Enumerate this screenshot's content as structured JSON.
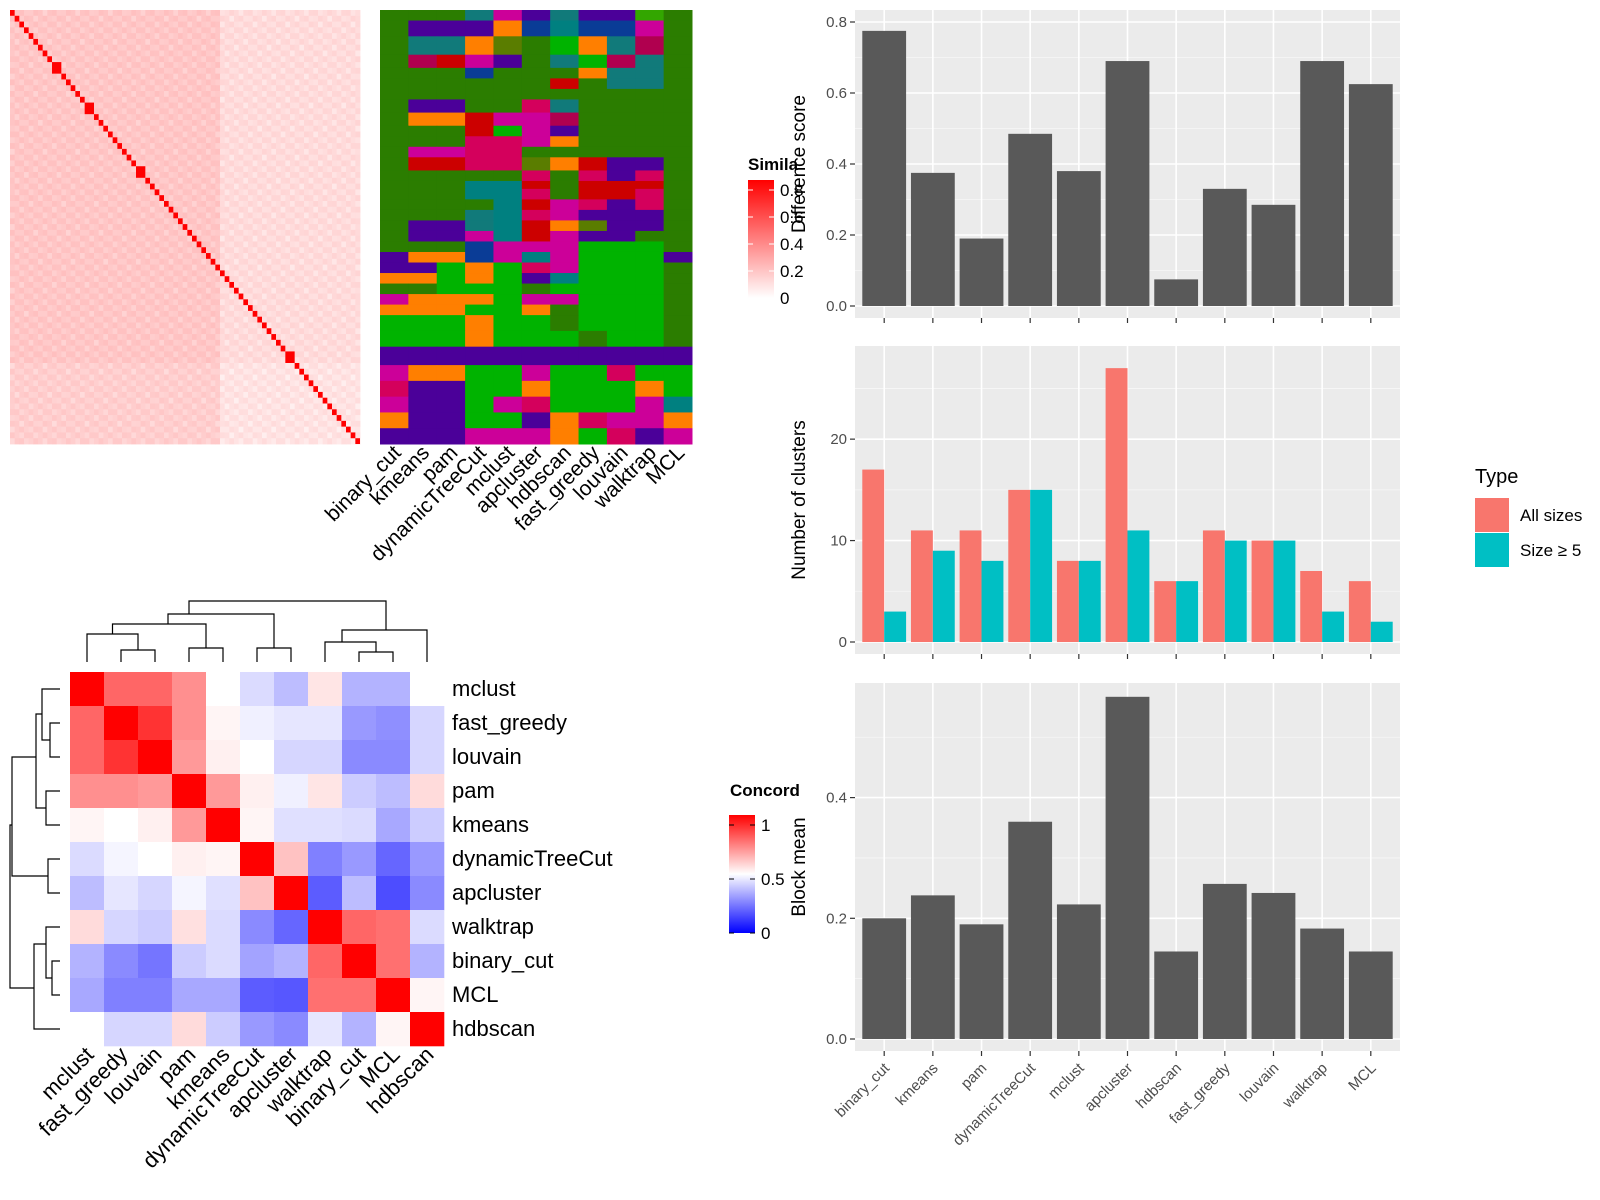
{
  "chart_data": [
    {
      "type": "heatmap",
      "title": "",
      "legend_title": "Simila",
      "legend_ticks": [
        "0",
        "0.2",
        "0.4",
        "0.6",
        "0.8"
      ],
      "color_low": "#ffffff",
      "color_high": "#ff0000",
      "n_cells": 75,
      "diag_blocks": [
        [
          0,
          1
        ],
        [
          1,
          2
        ],
        [
          2,
          3
        ],
        [
          3,
          4
        ],
        [
          4,
          5
        ],
        [
          5,
          6
        ],
        [
          6,
          7
        ],
        [
          7,
          8
        ],
        [
          8,
          9
        ],
        [
          9,
          11
        ],
        [
          11,
          12
        ],
        [
          12,
          13
        ],
        [
          13,
          14
        ],
        [
          14,
          15
        ],
        [
          15,
          16
        ],
        [
          16,
          18
        ],
        [
          18,
          19
        ],
        [
          19,
          20
        ],
        [
          20,
          21
        ],
        [
          21,
          22
        ],
        [
          22,
          23
        ],
        [
          23,
          24
        ],
        [
          24,
          25
        ],
        [
          25,
          26
        ],
        [
          26,
          27
        ],
        [
          27,
          29
        ],
        [
          29,
          30
        ],
        [
          30,
          31
        ],
        [
          31,
          32
        ],
        [
          32,
          33
        ],
        [
          33,
          34
        ],
        [
          34,
          35
        ],
        [
          35,
          36
        ],
        [
          36,
          37
        ],
        [
          37,
          38
        ],
        [
          38,
          39
        ],
        [
          39,
          40
        ],
        [
          40,
          41
        ],
        [
          41,
          42
        ],
        [
          42,
          43
        ],
        [
          43,
          44
        ],
        [
          44,
          45
        ],
        [
          45,
          46
        ],
        [
          46,
          47
        ],
        [
          47,
          48
        ],
        [
          48,
          49
        ],
        [
          49,
          50
        ],
        [
          50,
          51
        ],
        [
          51,
          52
        ],
        [
          52,
          53
        ],
        [
          53,
          54
        ],
        [
          54,
          55
        ],
        [
          55,
          56
        ],
        [
          56,
          57
        ],
        [
          57,
          58
        ],
        [
          58,
          59
        ],
        [
          59,
          61
        ],
        [
          61,
          62
        ],
        [
          62,
          63
        ],
        [
          63,
          64
        ],
        [
          64,
          65
        ],
        [
          65,
          66
        ],
        [
          66,
          67
        ],
        [
          67,
          68
        ],
        [
          68,
          69
        ],
        [
          69,
          70
        ],
        [
          70,
          71
        ],
        [
          71,
          72
        ],
        [
          72,
          73
        ],
        [
          73,
          74
        ],
        [
          74,
          75
        ]
      ]
    },
    {
      "type": "heatmap",
      "title": "",
      "columns": [
        "binary_cut",
        "kmeans",
        "pam",
        "dynamicTreeCut",
        "mclust",
        "apcluster",
        "hdbscan",
        "fast_greedy",
        "louvain",
        "walktrap",
        "MCL"
      ],
      "palette": [
        "#2b7d00",
        "#4b0099",
        "#cc0099",
        "#117a7a",
        "#ff7f00",
        "#9b30ff",
        "#00b300",
        "#cc0000",
        "#0a3c96",
        "#5a7d00",
        "#33a600",
        "#d4005c",
        "#008080",
        "#b0004f"
      ],
      "row_groups": [
        {
          "rows": [
            0,
            8
          ],
          "cells": [
            0,
            0,
            0,
            3,
            2,
            1,
            3,
            1,
            1,
            10,
            0
          ]
        },
        {
          "rows": [
            8,
            20
          ],
          "cells": [
            0,
            1,
            1,
            1,
            4,
            8,
            12,
            8,
            8,
            2,
            0
          ]
        },
        {
          "rows": [
            20,
            34
          ],
          "cells": [
            0,
            3,
            3,
            4,
            9,
            0,
            6,
            4,
            3,
            13,
            0
          ]
        },
        {
          "rows": [
            34,
            44
          ],
          "cells": [
            0,
            13,
            7,
            2,
            1,
            0,
            3,
            6,
            13,
            3,
            0
          ]
        },
        {
          "rows": [
            44,
            52
          ],
          "cells": [
            0,
            0,
            0,
            8,
            0,
            0,
            0,
            4,
            3,
            3,
            0
          ]
        },
        {
          "rows": [
            52,
            60
          ],
          "cells": [
            0,
            0,
            0,
            0,
            0,
            0,
            7,
            0,
            3,
            3,
            0
          ]
        },
        {
          "rows": [
            60,
            68
          ],
          "cells": [
            0,
            0,
            0,
            0,
            0,
            0,
            0,
            0,
            0,
            0,
            0
          ]
        },
        {
          "rows": [
            68,
            78
          ],
          "cells": [
            0,
            1,
            1,
            0,
            0,
            11,
            3,
            0,
            0,
            0,
            0
          ]
        },
        {
          "rows": [
            78,
            88
          ],
          "cells": [
            0,
            4,
            4,
            7,
            2,
            2,
            13,
            0,
            0,
            0,
            0
          ]
        },
        {
          "rows": [
            88,
            96
          ],
          "cells": [
            0,
            0,
            0,
            7,
            6,
            2,
            1,
            0,
            0,
            0,
            0
          ]
        },
        {
          "rows": [
            96,
            104
          ],
          "cells": [
            0,
            0,
            0,
            11,
            11,
            2,
            4,
            0,
            0,
            0,
            0
          ]
        },
        {
          "rows": [
            104,
            112
          ],
          "cells": [
            0,
            2,
            2,
            11,
            11,
            0,
            0,
            0,
            0,
            0,
            0
          ]
        },
        {
          "rows": [
            112,
            122
          ],
          "cells": [
            0,
            7,
            7,
            11,
            11,
            9,
            4,
            7,
            1,
            1,
            0
          ]
        },
        {
          "rows": [
            122,
            130
          ],
          "cells": [
            0,
            0,
            0,
            0,
            0,
            11,
            0,
            11,
            1,
            11,
            0
          ]
        },
        {
          "rows": [
            130,
            136
          ],
          "cells": [
            0,
            0,
            0,
            12,
            12,
            7,
            0,
            7,
            7,
            7,
            0
          ]
        },
        {
          "rows": [
            136,
            144
          ],
          "cells": [
            0,
            0,
            0,
            12,
            12,
            11,
            0,
            7,
            7,
            11,
            0
          ]
        },
        {
          "rows": [
            144,
            152
          ],
          "cells": [
            0,
            0,
            0,
            0,
            12,
            7,
            2,
            11,
            1,
            11,
            0
          ]
        },
        {
          "rows": [
            152,
            160
          ],
          "cells": [
            0,
            0,
            0,
            3,
            12,
            11,
            2,
            1,
            1,
            1,
            0
          ]
        },
        {
          "rows": [
            160,
            168
          ],
          "cells": [
            0,
            1,
            1,
            3,
            12,
            7,
            4,
            9,
            1,
            1,
            0
          ]
        },
        {
          "rows": [
            168,
            176
          ],
          "cells": [
            0,
            1,
            1,
            2,
            12,
            7,
            2,
            1,
            1,
            0,
            0
          ]
        },
        {
          "rows": [
            176,
            184
          ],
          "cells": [
            0,
            0,
            0,
            8,
            2,
            2,
            2,
            6,
            6,
            6,
            0
          ]
        },
        {
          "rows": [
            184,
            192
          ],
          "cells": [
            1,
            4,
            4,
            8,
            2,
            12,
            2,
            6,
            6,
            6,
            1
          ]
        },
        {
          "rows": [
            192,
            200
          ],
          "cells": [
            1,
            1,
            6,
            4,
            6,
            11,
            2,
            6,
            6,
            6,
            0
          ]
        },
        {
          "rows": [
            200,
            208
          ],
          "cells": [
            4,
            4,
            6,
            4,
            6,
            1,
            12,
            6,
            6,
            6,
            0
          ]
        },
        {
          "rows": [
            208,
            216
          ],
          "cells": [
            0,
            0,
            6,
            6,
            6,
            0,
            6,
            6,
            6,
            6,
            0
          ]
        },
        {
          "rows": [
            216,
            224
          ],
          "cells": [
            2,
            4,
            4,
            4,
            6,
            2,
            2,
            6,
            6,
            6,
            0
          ]
        },
        {
          "rows": [
            224,
            232
          ],
          "cells": [
            4,
            4,
            4,
            6,
            6,
            4,
            0,
            6,
            6,
            6,
            0
          ]
        },
        {
          "rows": [
            232,
            244
          ],
          "cells": [
            6,
            6,
            6,
            4,
            6,
            6,
            0,
            6,
            6,
            6,
            0
          ]
        },
        {
          "rows": [
            244,
            256
          ],
          "cells": [
            6,
            6,
            6,
            4,
            6,
            6,
            6,
            0,
            6,
            6,
            0
          ]
        },
        {
          "rows": [
            256,
            270
          ],
          "cells": [
            1,
            1,
            1,
            1,
            1,
            1,
            1,
            1,
            1,
            1,
            1
          ]
        },
        {
          "rows": [
            270,
            282
          ],
          "cells": [
            2,
            4,
            4,
            6,
            6,
            2,
            6,
            6,
            11,
            6,
            6
          ]
        },
        {
          "rows": [
            282,
            294
          ],
          "cells": [
            11,
            1,
            1,
            6,
            6,
            4,
            6,
            6,
            6,
            4,
            6
          ]
        },
        {
          "rows": [
            294,
            306
          ],
          "cells": [
            2,
            1,
            1,
            6,
            2,
            11,
            6,
            6,
            6,
            2,
            12
          ]
        },
        {
          "rows": [
            306,
            318
          ],
          "cells": [
            4,
            1,
            1,
            6,
            6,
            1,
            4,
            11,
            2,
            2,
            4
          ]
        },
        {
          "rows": [
            318,
            330
          ],
          "cells": [
            1,
            1,
            1,
            2,
            2,
            2,
            4,
            6,
            11,
            1,
            2
          ]
        }
      ]
    },
    {
      "type": "heatmap",
      "title": "",
      "legend_title": "Concord",
      "legend_ticks": [
        "0",
        "0.5",
        "1"
      ],
      "color_low": "#0000ff",
      "color_mid": "#ffffff",
      "color_high": "#ff0000",
      "row_labels": [
        "mclust",
        "fast_greedy",
        "louvain",
        "pam",
        "kmeans",
        "dynamicTreeCut",
        "apcluster",
        "walktrap",
        "binary_cut",
        "MCL",
        "hdbscan"
      ],
      "col_labels": [
        "mclust",
        "fast_greedy",
        "louvain",
        "pam",
        "kmeans",
        "dynamicTreeCut",
        "apcluster",
        "walktrap",
        "binary_cut",
        "MCL",
        "hdbscan"
      ],
      "values": [
        [
          1.0,
          0.8,
          0.8,
          0.72,
          0.5,
          0.43,
          0.37,
          0.55,
          0.35,
          0.35,
          0.5
        ],
        [
          0.8,
          1.0,
          0.9,
          0.72,
          0.52,
          0.47,
          0.45,
          0.45,
          0.3,
          0.28,
          0.42
        ],
        [
          0.8,
          0.9,
          1.0,
          0.7,
          0.53,
          0.5,
          0.42,
          0.42,
          0.27,
          0.27,
          0.42
        ],
        [
          0.72,
          0.72,
          0.7,
          1.0,
          0.7,
          0.53,
          0.47,
          0.55,
          0.4,
          0.37,
          0.57
        ],
        [
          0.52,
          0.5,
          0.53,
          0.7,
          1.0,
          0.52,
          0.44,
          0.44,
          0.43,
          0.33,
          0.4
        ],
        [
          0.43,
          0.48,
          0.5,
          0.53,
          0.52,
          1.0,
          0.62,
          0.25,
          0.3,
          0.2,
          0.3
        ],
        [
          0.37,
          0.45,
          0.42,
          0.48,
          0.44,
          0.62,
          1.0,
          0.18,
          0.37,
          0.15,
          0.27
        ],
        [
          0.57,
          0.42,
          0.4,
          0.56,
          0.43,
          0.27,
          0.2,
          1.0,
          0.8,
          0.78,
          0.43
        ],
        [
          0.35,
          0.27,
          0.23,
          0.4,
          0.43,
          0.32,
          0.35,
          0.8,
          1.0,
          0.78,
          0.35
        ],
        [
          0.33,
          0.25,
          0.25,
          0.33,
          0.33,
          0.18,
          0.17,
          0.78,
          0.78,
          1.0,
          0.52
        ],
        [
          0.5,
          0.42,
          0.42,
          0.57,
          0.4,
          0.3,
          0.27,
          0.45,
          0.35,
          0.52,
          1.0
        ]
      ]
    },
    {
      "type": "bar",
      "categories": [
        "binary_cut",
        "kmeans",
        "pam",
        "dynamicTreeCut",
        "mclust",
        "apcluster",
        "hdbscan",
        "fast_greedy",
        "louvain",
        "walktrap",
        "MCL"
      ],
      "values": [
        0.775,
        0.375,
        0.19,
        0.485,
        0.38,
        0.69,
        0.075,
        0.33,
        0.285,
        0.69,
        0.625
      ],
      "xlabel": "",
      "ylabel": "Difference score",
      "ylim": [
        0,
        0.8
      ],
      "yticks": [
        "0.0",
        "0.2",
        "0.4",
        "0.6",
        "0.8"
      ],
      "bar_color": "#595959"
    },
    {
      "type": "bar",
      "categories": [
        "binary_cut",
        "kmeans",
        "pam",
        "dynamicTreeCut",
        "mclust",
        "apcluster",
        "hdbscan",
        "fast_greedy",
        "louvain",
        "walktrap",
        "MCL"
      ],
      "series": [
        {
          "name": "All sizes",
          "values": [
            17,
            11,
            11,
            15,
            8,
            27,
            6,
            11,
            10,
            7,
            6
          ],
          "color": "#f8766d"
        },
        {
          "name": "Size ≥ 5",
          "values": [
            3,
            9,
            8,
            15,
            8,
            11,
            6,
            10,
            10,
            3,
            2
          ],
          "color": "#00bfc4"
        }
      ],
      "xlabel": "",
      "ylabel": "Number of clusters",
      "ylim": [
        0,
        28
      ],
      "yticks": [
        "0",
        "10",
        "20"
      ],
      "legend_title": "Type",
      "legend_position": "right"
    },
    {
      "type": "bar",
      "categories": [
        "binary_cut",
        "kmeans",
        "pam",
        "dynamicTreeCut",
        "mclust",
        "apcluster",
        "hdbscan",
        "fast_greedy",
        "louvain",
        "walktrap",
        "MCL"
      ],
      "values": [
        0.2,
        0.238,
        0.19,
        0.36,
        0.223,
        0.567,
        0.145,
        0.257,
        0.242,
        0.183,
        0.145
      ],
      "xlabel": "",
      "ylabel": "Block mean",
      "ylim": [
        0,
        0.57
      ],
      "yticks": [
        "0.0",
        "0.2",
        "0.4"
      ],
      "bar_color": "#595959"
    }
  ]
}
